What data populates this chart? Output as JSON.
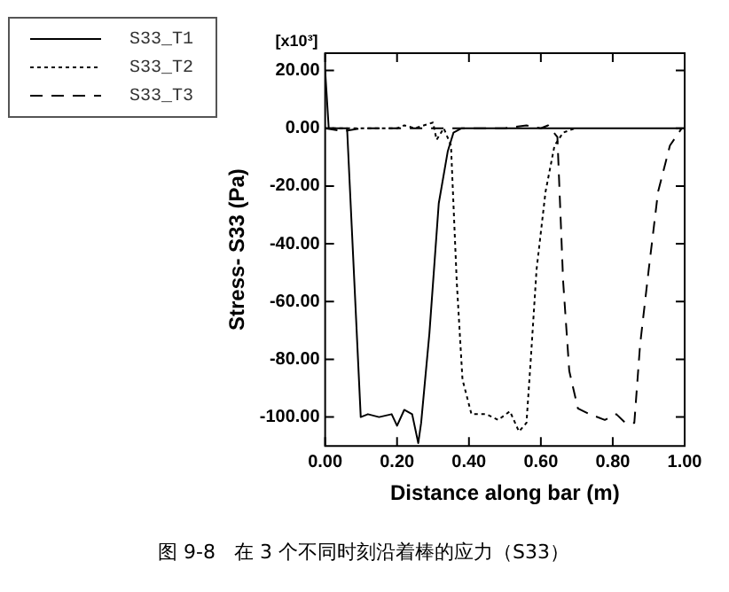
{
  "chart_data": {
    "type": "line",
    "xlabel": "Distance along bar (m)",
    "ylabel": "Stress- S33 (Pa)",
    "annotations": [
      "[x10³]",
      "图 9-8   在 3 个不同时刻沿着棒的应力（S33）"
    ],
    "xlim": [
      0,
      1
    ],
    "ylim": [
      -110,
      26
    ],
    "xticks": [
      {
        "value": 0,
        "label": "0.00"
      },
      {
        "value": 0.2,
        "label": "0.20"
      },
      {
        "value": 0.4,
        "label": "0.40"
      },
      {
        "value": 0.6,
        "label": "0.60"
      },
      {
        "value": 0.8,
        "label": "0.80"
      },
      {
        "value": 1,
        "label": "1.00"
      }
    ],
    "yticks": [
      {
        "value": 20,
        "label": "20.00"
      },
      {
        "value": 0,
        "label": "0.00"
      },
      {
        "value": -20,
        "label": "-20.00"
      },
      {
        "value": -40,
        "label": "-40.00"
      },
      {
        "value": -60,
        "label": "-60.00"
      },
      {
        "value": -80,
        "label": "-80.00"
      },
      {
        "value": -100,
        "label": "-100.00"
      }
    ],
    "grid": false,
    "legend": "top left",
    "marker": "none",
    "series": [
      {
        "name": "S33_T1",
        "color": "#000000",
        "line_style": "solid",
        "x": [
          0,
          0.01,
          0.03,
          0.061,
          0.099,
          0.119,
          0.15,
          0.185,
          0.2,
          0.22,
          0.242,
          0.259,
          0.267,
          0.29,
          0.316,
          0.341,
          0.357,
          0.38,
          1
        ],
        "values": [
          20,
          0,
          0,
          0,
          -100,
          -99,
          -100,
          -99,
          -103,
          -97.5,
          -99,
          -109,
          -102,
          -71,
          -26,
          -8,
          -1.5,
          0,
          0
        ]
      },
      {
        "name": "S33_T2",
        "color": "#000000",
        "line_style": "dotted",
        "x": [
          0,
          0.2,
          0.22,
          0.25,
          0.3,
          0.31,
          0.33,
          0.35,
          0.366,
          0.382,
          0.407,
          0.448,
          0.481,
          0.514,
          0.539,
          0.56,
          0.572,
          0.588,
          0.613,
          0.638,
          0.662,
          0.695
        ],
        "values": [
          0,
          0,
          1,
          0,
          2,
          -4,
          0,
          -6,
          -53,
          -87,
          -99,
          -99,
          -101,
          -98,
          -105,
          -102,
          -80,
          -49,
          -22,
          -6,
          -1.5,
          0
        ]
      },
      {
        "name": "S33_T3",
        "color": "#000000",
        "line_style": "dashed",
        "x": [
          0,
          0.05,
          0.1,
          0.2,
          0.3,
          0.4,
          0.5,
          0.56,
          0.6,
          0.62,
          0.646,
          0.662,
          0.679,
          0.703,
          0.736,
          0.778,
          0.81,
          0.835,
          0.86,
          0.876,
          0.9,
          0.926,
          0.959,
          0.992
        ],
        "values": [
          0,
          -1,
          0,
          0,
          0,
          0,
          0,
          1,
          0,
          1,
          -3,
          -53,
          -84,
          -97,
          -99,
          -101,
          -99,
          -102,
          -102,
          -75,
          -49,
          -22,
          -6,
          0
        ]
      }
    ]
  }
}
